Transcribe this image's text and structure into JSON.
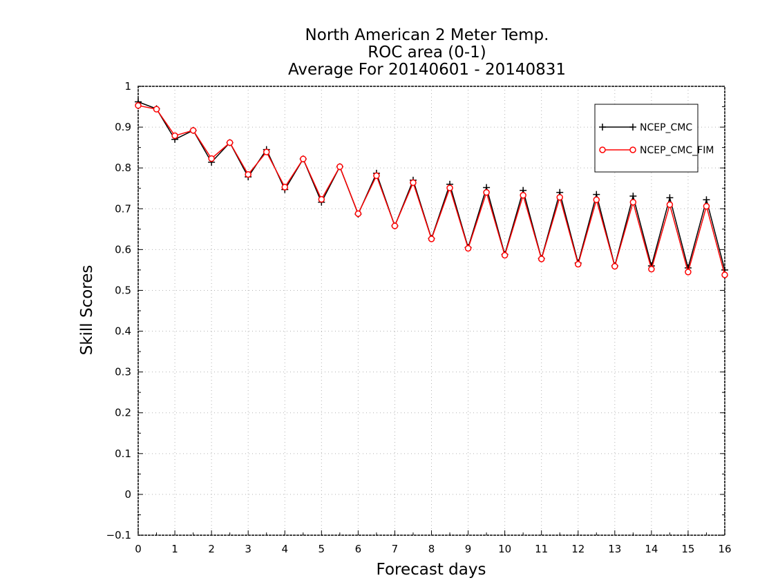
{
  "chart_data": {
    "type": "line",
    "title": [
      "North American 2 Meter Temp.",
      "ROC area (0-1)",
      "Average For 20140601 - 20140831"
    ],
    "xlabel": "Forecast days",
    "ylabel": "Skill Scores",
    "xlim": [
      0,
      16
    ],
    "ylim": [
      -0.1,
      1
    ],
    "xticks": [
      "0",
      "1",
      "2",
      "3",
      "4",
      "5",
      "6",
      "7",
      "8",
      "9",
      "10",
      "11",
      "12",
      "13",
      "14",
      "15",
      "16"
    ],
    "yticks": [
      "−0.1",
      "0",
      "0.1",
      "0.2",
      "0.3",
      "0.4",
      "0.5",
      "0.6",
      "0.7",
      "0.8",
      "0.9",
      "1"
    ],
    "grid": true,
    "legend_position": "top-right",
    "x": [
      0,
      0.5,
      1,
      1.5,
      2,
      2.5,
      3,
      3.5,
      4,
      4.5,
      5,
      5.5,
      6,
      6.5,
      7,
      7.5,
      8,
      8.5,
      9,
      9.5,
      10,
      10.5,
      11,
      11.5,
      12,
      12.5,
      13,
      13.5,
      14,
      14.5,
      15,
      15.5,
      16
    ],
    "series": [
      {
        "name": "NCEP_CMC",
        "color": "#000000",
        "marker": "plus",
        "values": [
          0.962,
          0.945,
          0.87,
          0.892,
          0.814,
          0.862,
          0.778,
          0.845,
          0.747,
          0.822,
          0.716,
          0.803,
          0.687,
          0.787,
          0.658,
          0.77,
          0.627,
          0.76,
          0.605,
          0.752,
          0.588,
          0.745,
          0.578,
          0.74,
          0.567,
          0.735,
          0.56,
          0.731,
          0.56,
          0.727,
          0.555,
          0.722,
          0.55
        ]
      },
      {
        "name": "NCEP_CMC_FIM",
        "color": "#ff0000",
        "marker": "circle",
        "values": [
          0.953,
          0.944,
          0.879,
          0.892,
          0.823,
          0.862,
          0.784,
          0.839,
          0.753,
          0.822,
          0.723,
          0.803,
          0.688,
          0.781,
          0.658,
          0.764,
          0.626,
          0.751,
          0.603,
          0.74,
          0.586,
          0.733,
          0.577,
          0.728,
          0.564,
          0.722,
          0.559,
          0.716,
          0.552,
          0.71,
          0.545,
          0.706,
          0.538
        ]
      }
    ]
  }
}
